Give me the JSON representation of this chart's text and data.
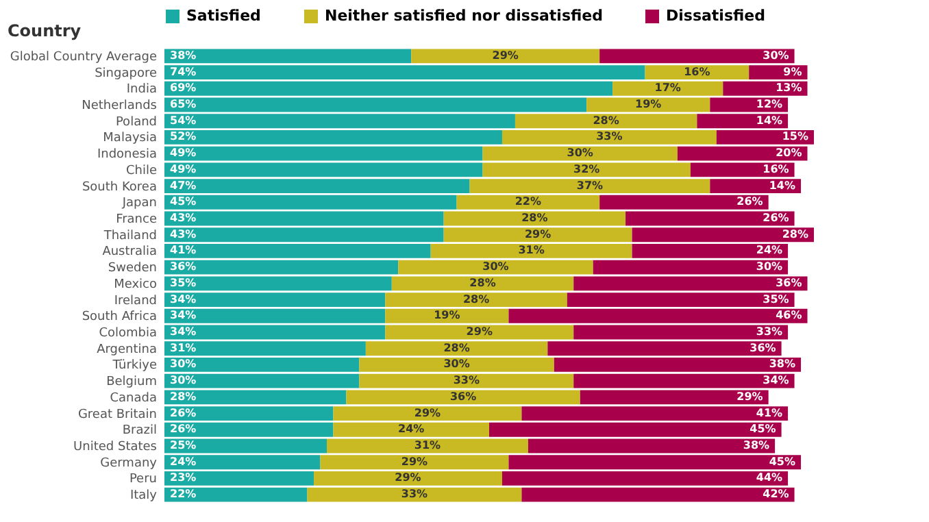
{
  "chart_data": {
    "type": "bar",
    "orientation": "horizontal",
    "stacked": true,
    "ylabel": "Country",
    "legend": "top",
    "tick_labels": "y",
    "categories": [
      "Global Country Average",
      "Singapore",
      "India",
      "Netherlands",
      "Poland",
      "Malaysia",
      "Indonesia",
      "Chile",
      "South Korea",
      "Japan",
      "France",
      "Thailand",
      "Australia",
      "Sweden",
      "Mexico",
      "Ireland",
      "South Africa",
      "Colombia",
      "Argentina",
      "Türkiye",
      "Belgium",
      "Canada",
      "Great Britain",
      "Brazil",
      "United States",
      "Germany",
      "Peru",
      "Italy"
    ],
    "series": [
      {
        "name": "Satisfied",
        "color": "#1aaba4",
        "values": [
          38,
          74,
          69,
          65,
          54,
          52,
          49,
          49,
          47,
          45,
          43,
          43,
          41,
          36,
          35,
          34,
          34,
          34,
          31,
          30,
          30,
          28,
          26,
          26,
          25,
          24,
          23,
          22
        ],
        "value_labels": [
          "38%",
          "74%",
          "69%",
          "65%",
          "54%",
          "52%",
          "49%",
          "49%",
          "47%",
          "45%",
          "43%",
          "43%",
          "41%",
          "36%",
          "35%",
          "34%",
          "34%",
          "34%",
          "31%",
          "30%",
          "30%",
          "28%",
          "26%",
          "26%",
          "25%",
          "24%",
          "23%",
          "22%"
        ]
      },
      {
        "name": "Neither satisfied nor dissatisfied",
        "color": "#c9b922",
        "values": [
          29,
          16,
          17,
          19,
          28,
          33,
          30,
          32,
          37,
          22,
          28,
          29,
          31,
          30,
          28,
          28,
          19,
          29,
          28,
          30,
          33,
          36,
          29,
          24,
          31,
          29,
          29,
          33
        ],
        "value_labels": [
          "29%",
          "16%",
          "17%",
          "19%",
          "28%",
          "33%",
          "30%",
          "32%",
          "37%",
          "22%",
          "28%",
          "29%",
          "31%",
          "30%",
          "28%",
          "28%",
          "19%",
          "29%",
          "28%",
          "30%",
          "33%",
          "36%",
          "29%",
          "24%",
          "31%",
          "29%",
          "29%",
          "33%"
        ]
      },
      {
        "name": "Dissatisfied",
        "color": "#a9004b",
        "values": [
          30,
          9,
          13,
          12,
          14,
          15,
          20,
          16,
          14,
          26,
          26,
          28,
          24,
          30,
          36,
          35,
          46,
          33,
          36,
          38,
          34,
          29,
          41,
          45,
          38,
          45,
          44,
          42
        ],
        "value_labels": [
          "30%",
          "9%",
          "13%",
          "12%",
          "14%",
          "15%",
          "20%",
          "16%",
          "14%",
          "26%",
          "26%",
          "28%",
          "24%",
          "30%",
          "36%",
          "35%",
          "46%",
          "33%",
          "36%",
          "38%",
          "34%",
          "29%",
          "41%",
          "45%",
          "38%",
          "45%",
          "44%",
          "42%"
        ]
      }
    ]
  }
}
